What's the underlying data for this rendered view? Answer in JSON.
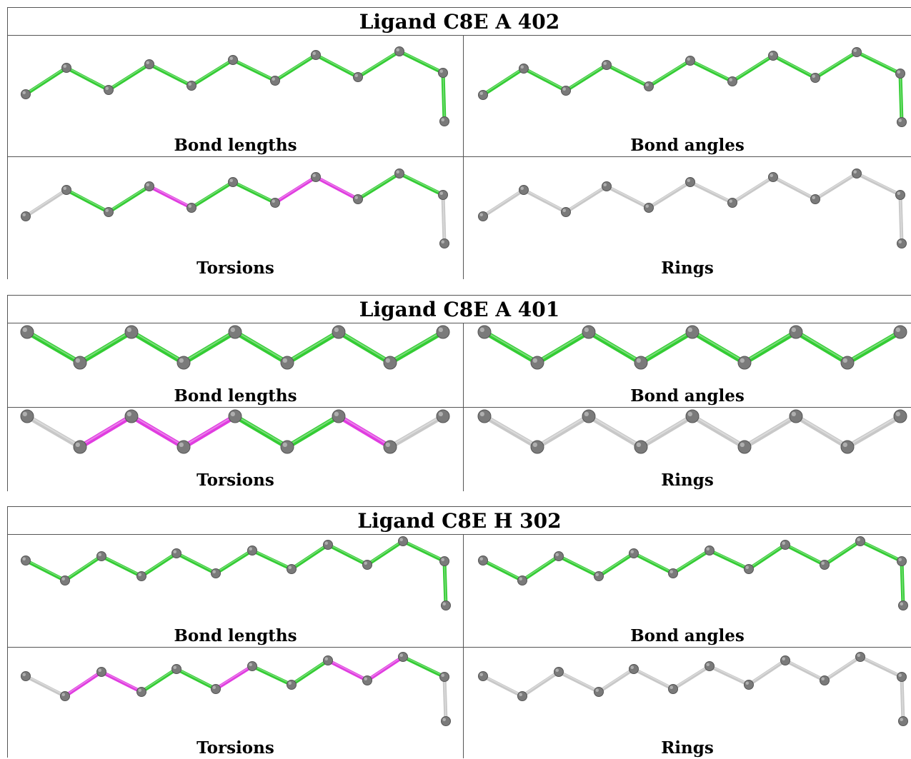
{
  "colors": {
    "ok": "#33cc33",
    "outlier": "#e03ce0",
    "neutral": "#c8c8c8",
    "atom": "#7a7a7a"
  },
  "blocks": [
    {
      "title": "Ligand C8E A 402",
      "panels": [
        {
          "label": "Bond lengths",
          "bonds": [
            "ok",
            "ok",
            "ok",
            "ok",
            "ok",
            "ok",
            "ok",
            "ok",
            "ok",
            "ok",
            "ok"
          ]
        },
        {
          "label": "Bond angles",
          "bonds": [
            "ok",
            "ok",
            "ok",
            "ok",
            "ok",
            "ok",
            "ok",
            "ok",
            "ok",
            "ok",
            "ok"
          ]
        },
        {
          "label": "Torsions",
          "bonds": [
            "neutral",
            "ok",
            "ok",
            "outlier",
            "ok",
            "ok",
            "outlier",
            "outlier",
            "ok",
            "ok",
            "neutral"
          ]
        },
        {
          "label": "Rings",
          "bonds": [
            "neutral",
            "neutral",
            "neutral",
            "neutral",
            "neutral",
            "neutral",
            "neutral",
            "neutral",
            "neutral",
            "neutral",
            "neutral"
          ]
        }
      ]
    },
    {
      "title": "Ligand C8E A 401",
      "panels": [
        {
          "label": "Bond lengths",
          "bonds": [
            "ok",
            "ok",
            "ok",
            "ok",
            "ok",
            "ok",
            "ok",
            "ok"
          ]
        },
        {
          "label": "Bond angles",
          "bonds": [
            "ok",
            "ok",
            "ok",
            "ok",
            "ok",
            "ok",
            "ok",
            "ok"
          ]
        },
        {
          "label": "Torsions",
          "bonds": [
            "neutral",
            "outlier",
            "outlier",
            "outlier",
            "ok",
            "ok",
            "outlier",
            "neutral"
          ]
        },
        {
          "label": "Rings",
          "bonds": [
            "neutral",
            "neutral",
            "neutral",
            "neutral",
            "neutral",
            "neutral",
            "neutral",
            "neutral"
          ]
        }
      ]
    },
    {
      "title": "Ligand C8E H 302",
      "panels": [
        {
          "label": "Bond lengths",
          "bonds": [
            "ok",
            "ok",
            "ok",
            "ok",
            "ok",
            "ok",
            "ok",
            "ok",
            "ok",
            "ok",
            "ok",
            "ok"
          ]
        },
        {
          "label": "Bond angles",
          "bonds": [
            "ok",
            "ok",
            "ok",
            "ok",
            "ok",
            "ok",
            "ok",
            "ok",
            "ok",
            "ok",
            "ok",
            "ok"
          ]
        },
        {
          "label": "Torsions",
          "bonds": [
            "neutral",
            "outlier",
            "outlier",
            "ok",
            "ok",
            "outlier",
            "ok",
            "ok",
            "outlier",
            "outlier",
            "ok",
            "neutral"
          ]
        },
        {
          "label": "Rings",
          "bonds": [
            "neutral",
            "neutral",
            "neutral",
            "neutral",
            "neutral",
            "neutral",
            "neutral",
            "neutral",
            "neutral",
            "neutral",
            "neutral",
            "neutral"
          ]
        }
      ]
    }
  ]
}
